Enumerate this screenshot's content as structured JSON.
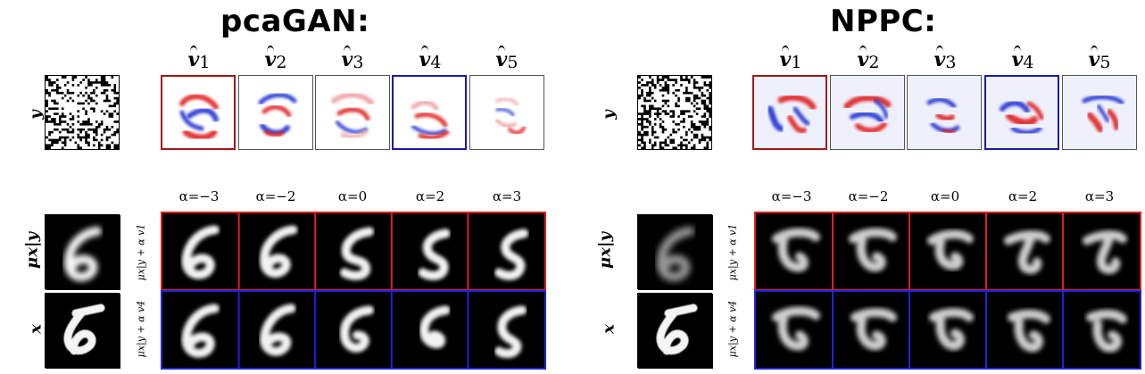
{
  "panels": [
    {
      "id": "pcagan",
      "title": "pcaGAN:",
      "vhat_labels": [
        "1",
        "2",
        "3",
        "4",
        "5"
      ],
      "alpha_labels": [
        "α=−3",
        "α=−2",
        "α=0",
        "α=2",
        "α=3"
      ],
      "row_labels": {
        "y": "y",
        "mu": "μx|y",
        "x": "x"
      },
      "sub_labels": {
        "row1": "μx|y + α v1",
        "row2": "μx|y + α v4"
      }
    },
    {
      "id": "nppc",
      "title": "NPPC:",
      "vhat_labels": [
        "1",
        "2",
        "3",
        "4",
        "5"
      ],
      "alpha_labels": [
        "α=−3",
        "α=−2",
        "α=0",
        "α=2",
        "α=3"
      ],
      "row_labels": {
        "y": "y",
        "mu": "μx|y",
        "x": "x"
      },
      "sub_labels": {
        "row1": "μx|y + α v1",
        "row2": "μx|y + α v4"
      }
    }
  ],
  "colors": {
    "positive": "#e02020",
    "negative": "#2030d0",
    "highlight_red": "#a01818",
    "highlight_blue": "#1a1aa8"
  }
}
